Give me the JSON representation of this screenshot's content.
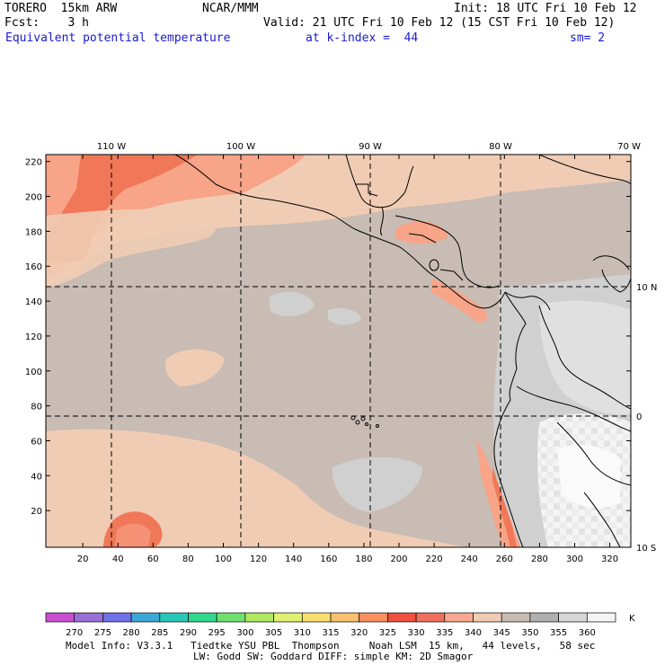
{
  "header": {
    "model": "TORERO  15km ARW",
    "org": "NCAR/MMM",
    "init": "Init: 18 UTC Fri 10 Feb 12",
    "fcst": "Fcst:    3 h",
    "valid": "Valid: 21 UTC Fri 10 Feb 12 (15 CST Fri 10 Feb 12)",
    "field": "Equivalent potential temperature",
    "level": "at k-index =  44",
    "smooth": "sm= 2"
  },
  "map": {
    "lon_labels": [
      "110 W",
      "100 W",
      "90 W",
      "80 W",
      "70 W"
    ],
    "lat_labels": [
      "10 N",
      "0",
      "10 S"
    ],
    "y_ticks": [
      "20",
      "40",
      "60",
      "80",
      "100",
      "120",
      "140",
      "160",
      "180",
      "200",
      "220"
    ],
    "x_ticks": [
      "20",
      "40",
      "60",
      "80",
      "100",
      "120",
      "140",
      "160",
      "180",
      "200",
      "220",
      "240",
      "260",
      "280",
      "300",
      "320"
    ],
    "colors": {
      "base": "#c8bcb4",
      "warm1": "#f0ccb4",
      "warm2": "#f8a488",
      "warm3": "#f07858",
      "cool1": "#d0d0d0",
      "cool2": "#e8e8e8",
      "white": "#f6f6f6"
    }
  },
  "colorbar": {
    "labels": [
      "270",
      "275",
      "280",
      "285",
      "290",
      "295",
      "300",
      "305",
      "310",
      "315",
      "320",
      "325",
      "330",
      "335",
      "340",
      "345",
      "350",
      "355",
      "360"
    ],
    "unit": "K",
    "colors": [
      "#c850d0",
      "#9870d8",
      "#7070e8",
      "#3ca8d8",
      "#28c8b8",
      "#30d890",
      "#70e070",
      "#b0e860",
      "#e0f070",
      "#f8e070",
      "#f8c070",
      "#f89060",
      "#f05040",
      "#f07060",
      "#f8a890",
      "#f0ccb4",
      "#c8bcb4",
      "#b0b0b0",
      "#d8d8d8",
      "#f4f4f4"
    ]
  },
  "footer": {
    "line1": "Model Info: V3.3.1   Tiedtke YSU PBL  Thompson     Noah LSM  15 km,   44 levels,   58 sec",
    "line2": "LW: Godd SW: Goddard DIFF: simple KM: 2D Smagor"
  }
}
